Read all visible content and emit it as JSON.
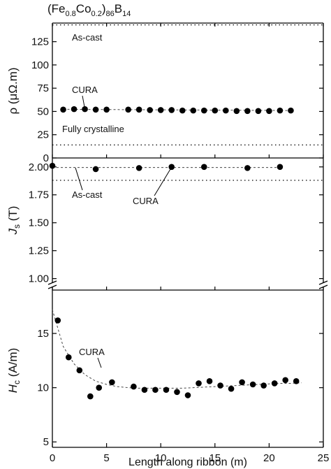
{
  "chart_data": {
    "type": "scatter",
    "title": "(Fe0.8Co0.2)86B14",
    "title_parts": {
      "a": "(Fe",
      "b": "0.8",
      "c": "Co",
      "d": "0.2",
      "e": ")",
      "f": "86",
      "g": "B",
      "h": "14"
    },
    "xlabel": "Length along ribbon (m)",
    "xlim": [
      0,
      25
    ],
    "xticks": [
      "0",
      "5",
      "10",
      "15",
      "20",
      "25"
    ],
    "grid": false,
    "panels": [
      {
        "id": "rho",
        "ylabel": "ρ (μΩ.m)",
        "ylim": [
          0,
          145
        ],
        "yticks": [
          "0",
          "25",
          "50",
          "75",
          "100",
          "125"
        ],
        "series": [
          {
            "name": "CURA",
            "x": [
              1,
              2,
              3,
              4,
              5,
              7,
              8,
              9,
              10,
              11,
              12,
              13,
              14,
              15,
              16,
              17,
              18,
              19,
              20,
              21,
              22
            ],
            "y": [
              52,
              52.5,
              52.5,
              52,
              52,
              52,
              52,
              51.5,
              51.5,
              51.5,
              51,
              51,
              51,
              51,
              51,
              50.5,
              50.5,
              50.5,
              50.5,
              51,
              51
            ]
          }
        ],
        "reference_lines": [
          {
            "label": "As-cast",
            "y": 143
          },
          {
            "label": "Fully crystalline",
            "y": 14
          }
        ],
        "trend": {
          "x": [
            1,
            22
          ],
          "y": [
            52.3,
            51
          ]
        }
      },
      {
        "id": "js",
        "ylabel_main": "J",
        "ylabel_sub": "s",
        "ylabel_unit": " (T)",
        "ylim": [
          0.96,
          2.08
        ],
        "yticks": [
          "1.00",
          "1.25",
          "1.50",
          "1.75",
          "2.00"
        ],
        "series": [
          {
            "name": "CURA",
            "x": [
              0,
              4,
              8,
              11,
              14,
              18,
              21
            ],
            "y": [
              2.01,
              1.98,
              1.99,
              2.0,
              2.0,
              1.99,
              2.0
            ]
          }
        ],
        "reference_lines": [
          {
            "label": "As-cast",
            "y": 1.88
          }
        ],
        "trend": {
          "x": [
            0,
            21
          ],
          "y": [
            1.995,
            1.995
          ]
        }
      },
      {
        "id": "hc",
        "ylabel_main": "H",
        "ylabel_sub": "c",
        "ylabel_unit": " (A/m)",
        "ylim": [
          4.5,
          19
        ],
        "yticks": [
          "5",
          "10",
          "15"
        ],
        "series": [
          {
            "name": "CURA",
            "x": [
              0.5,
              1.5,
              2.5,
              3.5,
              4.3,
              5.5,
              7.5,
              8.5,
              9.5,
              10.5,
              11.5,
              12.5,
              13.5,
              14.5,
              15.5,
              16.5,
              17.5,
              18.5,
              19.5,
              20.5,
              21.5,
              22.5
            ],
            "y": [
              16.2,
              12.8,
              11.6,
              9.2,
              10.0,
              10.5,
              10.1,
              9.8,
              9.8,
              9.8,
              9.6,
              9.3,
              10.4,
              10.6,
              10.2,
              9.9,
              10.5,
              10.3,
              10.2,
              10.4,
              10.7,
              10.6
            ]
          }
        ],
        "trend": {
          "x": [
            0,
            1,
            2,
            3,
            4,
            5,
            6,
            7,
            8,
            9,
            10,
            11,
            12,
            13,
            14,
            15,
            16,
            17,
            18,
            19,
            20,
            21,
            22,
            23
          ],
          "y": [
            17.2,
            13.8,
            12.2,
            11.2,
            10.6,
            10.3,
            10.1,
            10.0,
            9.95,
            9.95,
            9.95,
            9.95,
            9.95,
            10.0,
            10.05,
            10.1,
            10.15,
            10.2,
            10.25,
            10.3,
            10.35,
            10.4,
            10.4,
            10.45
          ]
        },
        "annotations": [
          "CURA"
        ]
      }
    ],
    "annotations": [
      "As-cast",
      "CURA",
      "Fully crystalline",
      "As-cast",
      "CURA",
      "CURA"
    ]
  }
}
